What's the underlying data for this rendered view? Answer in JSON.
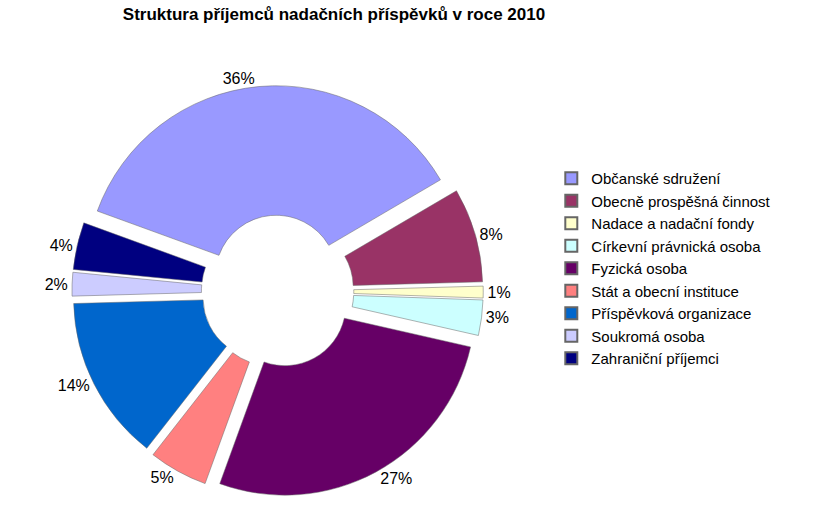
{
  "chart_data": {
    "type": "pie",
    "title": "Struktura příjemců nadačních příspěvků v roce 2010",
    "categories": [
      "Občanské sdružení",
      "Obecně prospěšná činnost",
      "Nadace a nadační fondy",
      "Církevní právnická osoba",
      "Fyzická osoba",
      "Stát a obecní instituce",
      "Příspěvková organizace",
      "Soukromá osoba",
      "Zahraniční příjemci"
    ],
    "values": [
      36,
      8,
      1,
      3,
      27,
      5,
      14,
      2,
      4
    ],
    "value_labels": [
      "36%",
      "8%",
      "1%",
      "3%",
      "27%",
      "5%",
      "14%",
      "2%",
      "4%"
    ],
    "colors": [
      "#9999ff",
      "#993366",
      "#ffffcc",
      "#ccffff",
      "#660066",
      "#ff8080",
      "#0066cc",
      "#ccccff",
      "#000080"
    ],
    "legend": "right",
    "data_labels": true
  }
}
